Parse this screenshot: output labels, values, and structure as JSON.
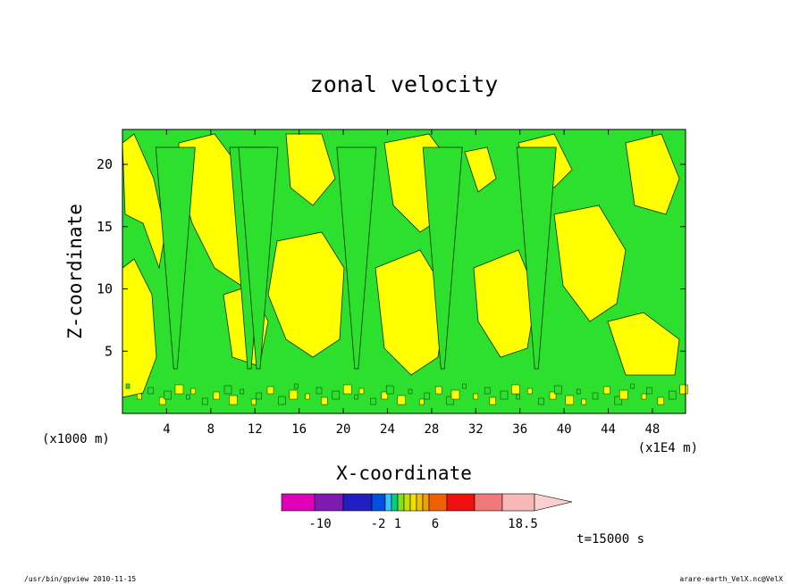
{
  "chart_data": {
    "type": "heatmap",
    "title": "zonal velocity",
    "xlabel": "X-coordinate",
    "ylabel": "Z-coordinate",
    "x_unit_label": "(x1E4 m)",
    "y_unit_label": "(x1000 m)",
    "x_ticks": [
      "4",
      "8",
      "12",
      "16",
      "20",
      "24",
      "28",
      "32",
      "36",
      "40",
      "44",
      "48"
    ],
    "y_ticks": [
      "5",
      "10",
      "15",
      "20"
    ],
    "xlim": [
      0,
      51
    ],
    "ylim": [
      0,
      22.8
    ],
    "time_label": "t=15000 s",
    "colorbar": {
      "labels": [
        "-10",
        "-2",
        "1",
        "6",
        "18.5"
      ],
      "colors": [
        "#e000b8",
        "#7e1ab0",
        "#2020c0",
        "#0050e0",
        "#30c8ff",
        "#00d080",
        "#80e020",
        "#c8e000",
        "#f0e000",
        "#f0c000",
        "#f0a000",
        "#f06000",
        "#f01010",
        "#f07878",
        "#f8b8b8",
        "#fcd0d0"
      ]
    },
    "field_colors": {
      "green": "#2ee02e",
      "yellow": "#ffff00"
    },
    "plumes_x": [
      4.8,
      11.5,
      12.3,
      21.2,
      29.0,
      37.5
    ]
  },
  "footer": {
    "left": "/usr/bin/gpview  2010-11-15",
    "right": "arare-earth_VelX.nc@VelX"
  }
}
